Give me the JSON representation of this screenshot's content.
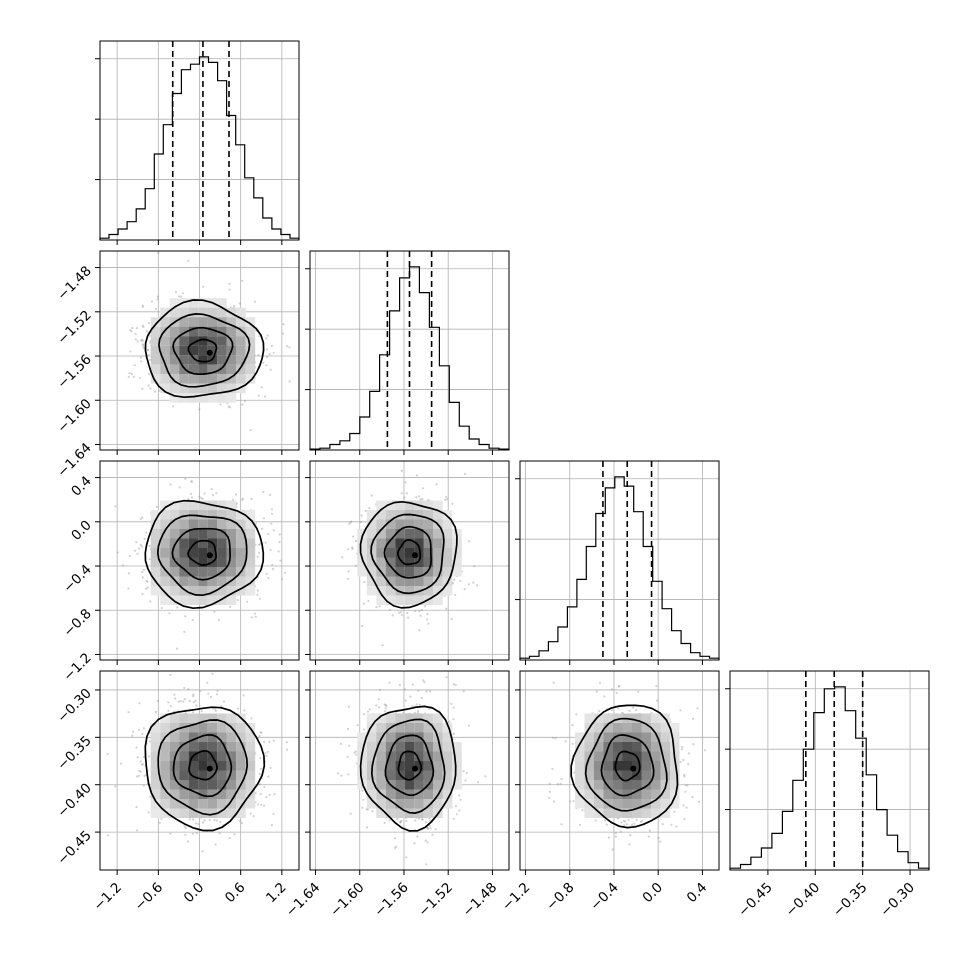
{
  "chart_data": {
    "type": "corner",
    "n_params": 4,
    "grid": true,
    "quantiles": [
      0.16,
      0.5,
      0.84
    ],
    "params": [
      {
        "mean": 0.05,
        "sd": 0.4,
        "range": [
          -1.45,
          1.45
        ],
        "ticks": [
          -1.2,
          -0.6,
          0.0,
          0.6,
          1.2
        ],
        "tick_labels": [
          "−1.2",
          "−0.6",
          "0.0",
          "0.6",
          "1.2"
        ],
        "q": [
          -0.39,
          0.05,
          0.43
        ]
      },
      {
        "mean": -1.555,
        "sd": 0.02,
        "range": [
          -1.645,
          -1.465
        ],
        "ticks": [
          -1.64,
          -1.6,
          -1.56,
          -1.52,
          -1.48
        ],
        "tick_labels": [
          "−1.64",
          "−1.60",
          "−1.56",
          "−1.52",
          "−1.48"
        ],
        "q": [
          -1.575,
          -1.555,
          -1.535
        ]
      },
      {
        "mean": -0.28,
        "sd": 0.22,
        "range": [
          -1.25,
          0.55
        ],
        "ticks": [
          -1.2,
          -0.8,
          -0.4,
          0.0,
          0.4
        ],
        "tick_labels": [
          "−1.2",
          "−0.8",
          "−0.4",
          "0.0",
          "0.4"
        ],
        "q": [
          -0.5,
          -0.28,
          -0.06
        ]
      },
      {
        "mean": -0.38,
        "sd": 0.03,
        "range": [
          -0.49,
          -0.28
        ],
        "ticks": [
          -0.45,
          -0.4,
          -0.35,
          -0.3
        ],
        "tick_labels": [
          "−0.45",
          "−0.40",
          "−0.35",
          "−0.30"
        ],
        "q": [
          -0.41,
          -0.38,
          -0.35
        ]
      }
    ],
    "histograms": [
      {
        "counts": [
          0.01,
          0.03,
          0.06,
          0.1,
          0.17,
          0.28,
          0.47,
          0.63,
          0.8,
          0.93,
          0.96,
          1.0,
          0.97,
          0.87,
          0.68,
          0.52,
          0.34,
          0.23,
          0.12,
          0.06,
          0.03,
          0.01
        ]
      },
      {
        "counts": [
          0.005,
          0.01,
          0.03,
          0.05,
          0.09,
          0.18,
          0.32,
          0.52,
          0.76,
          0.94,
          1.0,
          0.86,
          0.67,
          0.46,
          0.26,
          0.13,
          0.06,
          0.03,
          0.01,
          0.005
        ]
      },
      {
        "counts": [
          0.01,
          0.02,
          0.05,
          0.1,
          0.18,
          0.29,
          0.44,
          0.62,
          0.8,
          0.94,
          1.0,
          0.95,
          0.81,
          0.62,
          0.43,
          0.28,
          0.16,
          0.09,
          0.04,
          0.02,
          0.01
        ]
      },
      {
        "counts": [
          0.01,
          0.03,
          0.07,
          0.12,
          0.2,
          0.32,
          0.49,
          0.66,
          0.86,
          0.99,
          1.0,
          0.87,
          0.72,
          0.52,
          0.33,
          0.19,
          0.1,
          0.04,
          0.01
        ]
      }
    ]
  }
}
